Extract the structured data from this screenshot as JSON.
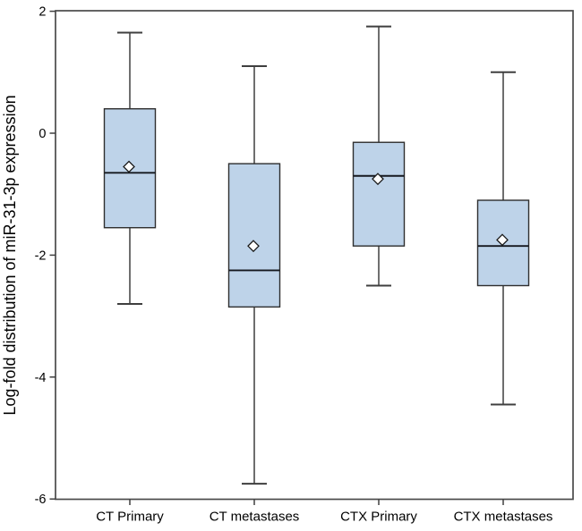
{
  "figure": {
    "background": "#ffffff"
  },
  "chart_data": {
    "type": "boxplot",
    "title": "",
    "xlabel": "",
    "ylabel": "Log-fold distribution of miR-31-3p expression",
    "ylim": [
      -6,
      2
    ],
    "yticks": [
      2,
      0,
      -2,
      -4,
      -6
    ],
    "grid": false,
    "legend_position": "none",
    "categories": [
      "CT Primary",
      "CT metastases",
      "CTX Primary",
      "CTX metastases"
    ],
    "series": [
      {
        "name": "CT Primary",
        "whisker_low": -2.8,
        "q1": -1.55,
        "median": -0.65,
        "q3": 0.4,
        "whisker_high": 1.65,
        "mean": -0.55
      },
      {
        "name": "CT metastases",
        "whisker_low": -5.75,
        "q1": -2.85,
        "median": -2.25,
        "q3": -0.5,
        "whisker_high": 1.1,
        "mean": -1.85
      },
      {
        "name": "CTX Primary",
        "whisker_low": -2.5,
        "q1": -1.85,
        "median": -0.7,
        "q3": -0.15,
        "whisker_high": 1.75,
        "mean": -0.75
      },
      {
        "name": "CTX metastases",
        "whisker_low": -4.45,
        "q1": -2.5,
        "median": -1.85,
        "q3": -1.1,
        "whisker_high": 1.0,
        "mean": -1.75
      }
    ],
    "colors": {
      "box_fill": "#bed3e9",
      "box_stroke": "#2e2e2e",
      "whisker_stroke": "#3f3f3f",
      "median_stroke": "#15181f",
      "frame_stroke": "#4a4a4a",
      "tick_stroke": "#3f3f3f",
      "mean_marker_fill": "#ffffff",
      "mean_marker_stroke": "#1a1a1a",
      "text": "#000000"
    }
  }
}
